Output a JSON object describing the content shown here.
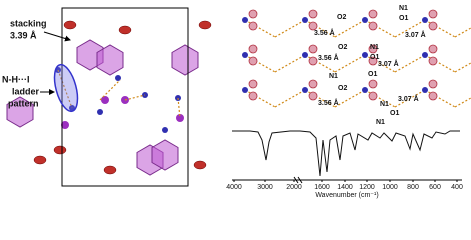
{
  "left_panel": {
    "stacking_label": "stacking",
    "stacking_distance": "3.39 Å",
    "ladder_label": [
      "N-H···I",
      "ladder",
      "pattern"
    ]
  },
  "right_panel": {
    "atom_labels": [
      "N1",
      "O1",
      "O2",
      "O2",
      "N1",
      "O1",
      "N1",
      "O1",
      "O2",
      "N1",
      "O1",
      "N1"
    ],
    "distance_labels": [
      "3.56 Å",
      "3.07 Å",
      "3.56 Å",
      "3.07 Å",
      "3.56 Å",
      "3.07 Å"
    ]
  },
  "spectrum": {
    "x_ticks": [
      "4000",
      "3000",
      "2000",
      "1600",
      "1400",
      "1200",
      "1000",
      "800",
      "600",
      "400"
    ],
    "x_axis_label": "Wavenumber (cm⁻¹)"
  }
}
